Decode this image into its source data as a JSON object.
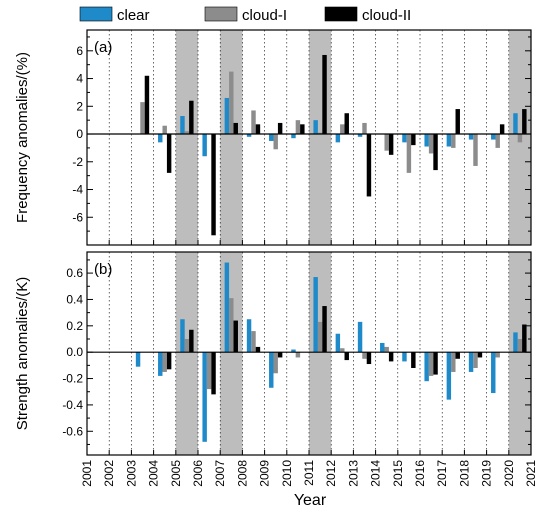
{
  "legend": [
    {
      "name": "clear",
      "color": "#1f8ac9"
    },
    {
      "name": "cloud-I",
      "color": "#8c8c8c"
    },
    {
      "name": "cloud-II",
      "color": "#000000"
    }
  ],
  "xlabel": "Year",
  "shade_color": "#bdbdbd",
  "years": [
    "2001",
    "2002",
    "2003",
    "2004",
    "2005",
    "2006",
    "2007",
    "2008",
    "2009",
    "2010",
    "2011",
    "2012",
    "2013",
    "2014",
    "2015",
    "2016",
    "2017",
    "2018",
    "2019",
    "2020",
    "2021"
  ],
  "chart_data": [
    {
      "type": "bar",
      "panel_label": "(a)",
      "ylabel": "Frequency anomalies/(%)",
      "ylim": [
        -8,
        7.5
      ],
      "yticks": [
        -6,
        -4,
        -2,
        0,
        2,
        4,
        6
      ],
      "categories": [
        "2001",
        "2002",
        "2003",
        "2004",
        "2005",
        "2006",
        "2007",
        "2008",
        "2009",
        "2010",
        "2011",
        "2012",
        "2013",
        "2014",
        "2015",
        "2016",
        "2017",
        "2018",
        "2019",
        "2020"
      ],
      "shaded_years": [
        "2005",
        "2007",
        "2011",
        "2020"
      ],
      "series": [
        {
          "name": "clear",
          "values": [
            0,
            0,
            0,
            -0.6,
            1.3,
            -1.6,
            2.6,
            -0.2,
            -0.5,
            -0.3,
            1.0,
            -0.6,
            -0.2,
            0,
            -0.6,
            -0.9,
            -0.9,
            -0.4,
            -0.4,
            1.5
          ]
        },
        {
          "name": "cloud-I",
          "values": [
            0,
            0,
            2.3,
            0.6,
            0.2,
            0,
            4.5,
            1.7,
            -1.1,
            1.0,
            0.1,
            0.7,
            0.8,
            -1.2,
            -2.8,
            -1.4,
            -1.0,
            -2.3,
            -1.0,
            -0.6
          ]
        },
        {
          "name": "cloud-II",
          "values": [
            0,
            0,
            4.2,
            -2.8,
            2.4,
            -7.3,
            0.8,
            0.7,
            0.8,
            0.7,
            5.7,
            1.5,
            -4.5,
            -1.5,
            -0.8,
            -2.6,
            1.8,
            0,
            0.7,
            1.8
          ]
        }
      ]
    },
    {
      "type": "bar",
      "panel_label": "(b)",
      "ylabel": "Strength anomalies/(K)",
      "ylim": [
        -0.78,
        0.76
      ],
      "yticks": [
        -0.6,
        -0.4,
        -0.2,
        0.0,
        0.2,
        0.4,
        0.6
      ],
      "categories": [
        "2001",
        "2002",
        "2003",
        "2004",
        "2005",
        "2006",
        "2007",
        "2008",
        "2009",
        "2010",
        "2011",
        "2012",
        "2013",
        "2014",
        "2015",
        "2016",
        "2017",
        "2018",
        "2019",
        "2020"
      ],
      "shaded_years": [
        "2005",
        "2007",
        "2011",
        "2020"
      ],
      "series": [
        {
          "name": "clear",
          "values": [
            0,
            0,
            -0.11,
            -0.18,
            0.25,
            -0.68,
            0.68,
            0.25,
            -0.27,
            0.02,
            0.57,
            0.14,
            0.23,
            0.07,
            -0.07,
            -0.22,
            -0.36,
            -0.15,
            -0.31,
            0.15
          ]
        },
        {
          "name": "cloud-I",
          "values": [
            0,
            0,
            0,
            -0.15,
            0.1,
            -0.28,
            0.41,
            0.16,
            -0.16,
            -0.04,
            0.23,
            0.03,
            -0.05,
            0.04,
            0,
            -0.18,
            -0.15,
            -0.12,
            -0.04,
            0.1
          ]
        },
        {
          "name": "cloud-II",
          "values": [
            0,
            0,
            0,
            -0.13,
            0.17,
            -0.32,
            0.24,
            0.04,
            -0.04,
            0,
            0.35,
            -0.06,
            -0.09,
            -0.07,
            -0.12,
            -0.17,
            -0.05,
            -0.04,
            0,
            0.21
          ]
        }
      ]
    }
  ]
}
